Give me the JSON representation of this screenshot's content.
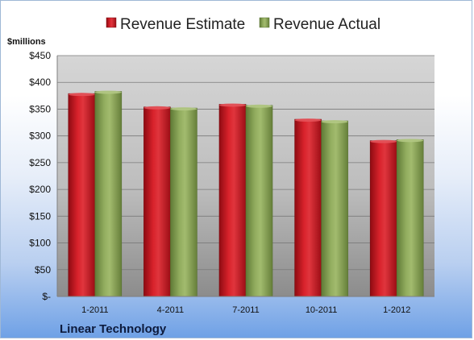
{
  "company_label": "Linear Technology",
  "colors": {
    "estimate": "#c0141d",
    "actual": "#8aa35a"
  },
  "chart_data": {
    "type": "bar",
    "categories": [
      "1-2011",
      "4-2011",
      "7-2011",
      "10-2011",
      "1-2012"
    ],
    "series": [
      {
        "name": "Revenue Estimate",
        "values": [
          379,
          354,
          359,
          331,
          291
        ]
      },
      {
        "name": "Revenue Actual",
        "values": [
          383,
          352,
          357,
          328,
          293
        ]
      }
    ],
    "ylabel": "$millions",
    "ylim": [
      0,
      450
    ],
    "yticks": [
      0,
      50,
      100,
      150,
      200,
      250,
      300,
      350,
      400,
      450
    ],
    "ytick_labels": [
      "$-",
      "$50",
      "$100",
      "$150",
      "$200",
      "$250",
      "$300",
      "$350",
      "$400",
      "$450"
    ],
    "grid": true,
    "legend_position": "top"
  }
}
